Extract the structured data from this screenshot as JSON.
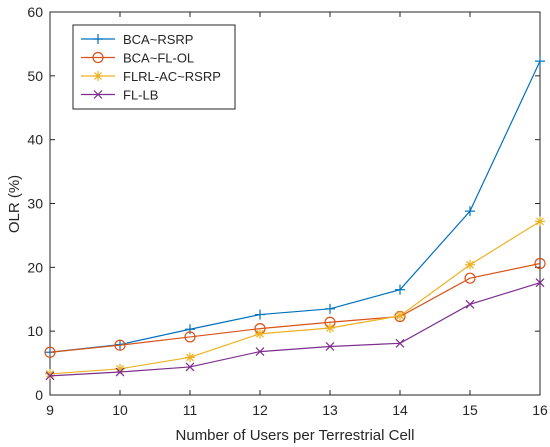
{
  "chart_data": {
    "type": "line",
    "title": "",
    "xlabel": "Number of Users per Terrestrial Cell",
    "ylabel": "OLR (%)",
    "xlim": [
      9,
      16
    ],
    "ylim": [
      0,
      60
    ],
    "x": [
      9,
      10,
      11,
      12,
      13,
      14,
      15,
      16
    ],
    "xticks": [
      "9",
      "10",
      "11",
      "12",
      "13",
      "14",
      "15",
      "16"
    ],
    "yticks": [
      "0",
      "10",
      "20",
      "30",
      "40",
      "50",
      "60"
    ],
    "grid": false,
    "legend_position": "top-left",
    "series": [
      {
        "name": "BCA~RSRP",
        "color": "#0072BD",
        "marker": "plus",
        "values": [
          6.7,
          7.9,
          10.3,
          12.6,
          13.5,
          16.5,
          28.8,
          52.3
        ]
      },
      {
        "name": "BCA~FL-OL",
        "color": "#D95319",
        "marker": "circle",
        "values": [
          6.7,
          7.8,
          9.1,
          10.4,
          11.4,
          12.3,
          18.3,
          20.6
        ]
      },
      {
        "name": "FLRL-AC~RSRP",
        "color": "#EDB120",
        "marker": "asterisk",
        "values": [
          3.3,
          4.1,
          5.9,
          9.6,
          10.5,
          12.4,
          20.4,
          27.2
        ]
      },
      {
        "name": "FL-LB",
        "color": "#7E2F8E",
        "marker": "x",
        "values": [
          3.0,
          3.6,
          4.4,
          6.8,
          7.6,
          8.1,
          14.2,
          17.6
        ]
      }
    ]
  }
}
